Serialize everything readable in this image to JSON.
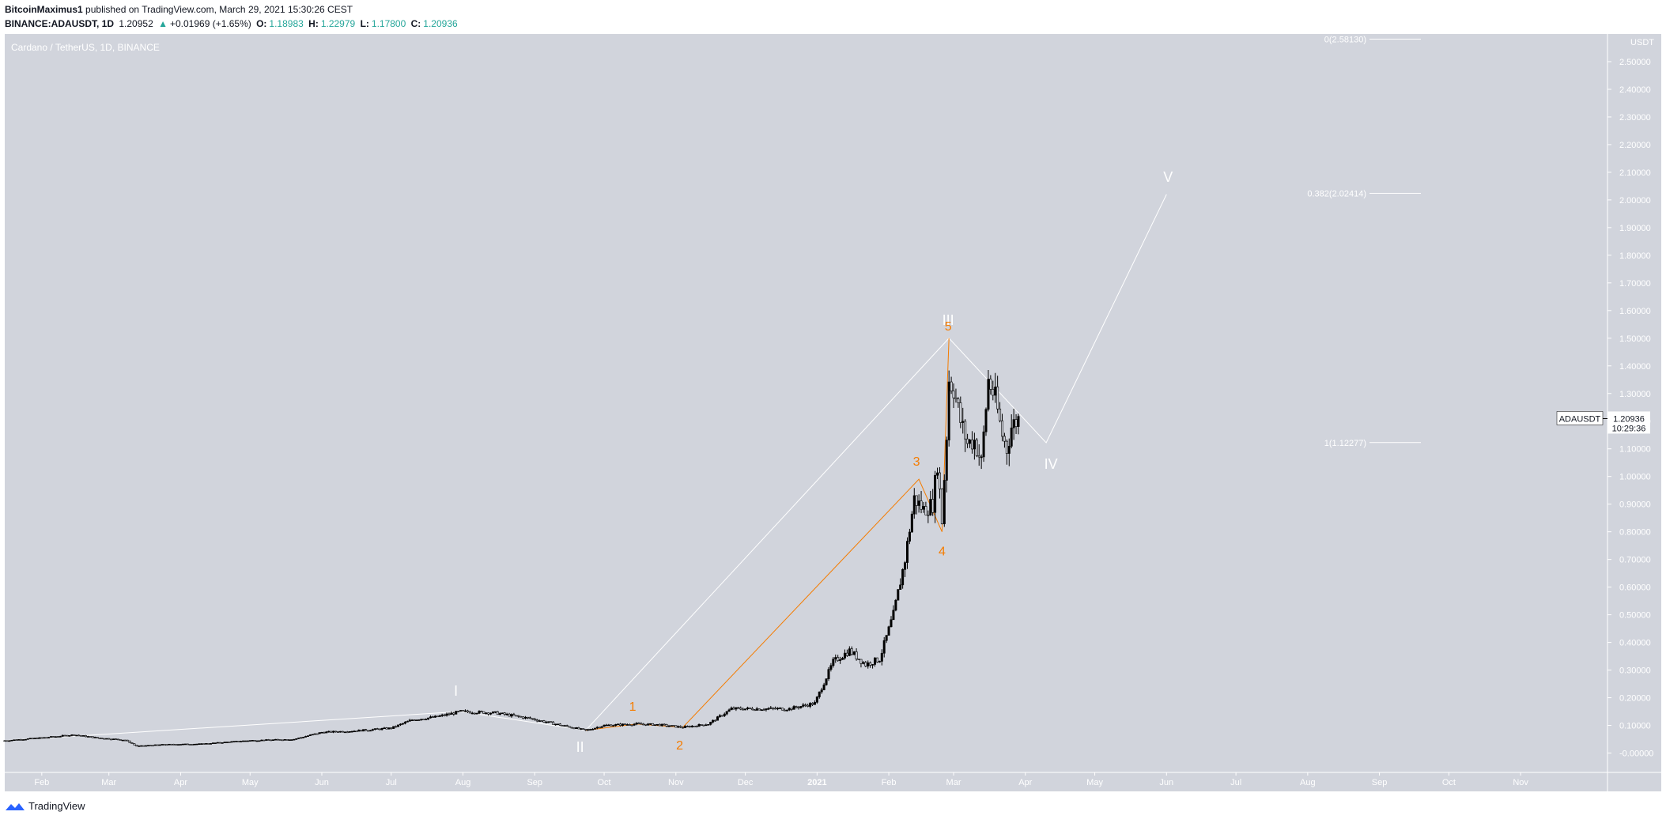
{
  "header": {
    "author": "BitcoinMaximus1",
    "published": "published on TradingView.com, March 29, 2021 15:30:26 CEST",
    "symbol": "BINANCE:ADAUSDT, 1D",
    "last": "1.20952",
    "change": "+0.01969 (+1.65%)",
    "o_label": "O:",
    "o_value": "1.18983",
    "h_label": "H:",
    "h_value": "1.22979",
    "l_label": "L:",
    "l_value": "1.17800",
    "c_label": "C:",
    "c_value": "1.20936"
  },
  "footer": {
    "brand": "TradingView"
  },
  "colors": {
    "background": "#d1d4dc",
    "candle": "#000000",
    "wave_white": "#ffffff",
    "wave_orange": "#f57c00",
    "up": "#26a69a"
  },
  "chart_data": {
    "type": "candlestick",
    "title": "Cardano / TetherUS, 1D, BINANCE",
    "axis_unit": "USDT",
    "ylim": [
      -0.07,
      2.6
    ],
    "y_ticks": [
      "2.50000",
      "2.40000",
      "2.30000",
      "2.20000",
      "2.10000",
      "2.00000",
      "1.90000",
      "1.80000",
      "1.70000",
      "1.60000",
      "1.50000",
      "1.40000",
      "1.30000",
      "1.20000",
      "1.10000",
      "1.00000",
      "0.90000",
      "0.80000",
      "0.70000",
      "0.60000",
      "0.50000",
      "0.40000",
      "0.30000",
      "0.20000",
      "0.10000",
      "-0.00000"
    ],
    "y_tick_values": [
      2.5,
      2.4,
      2.3,
      2.2,
      2.1,
      2.0,
      1.9,
      1.8,
      1.7,
      1.6,
      1.5,
      1.4,
      1.3,
      1.2,
      1.1,
      1.0,
      0.9,
      0.8,
      0.7,
      0.6,
      0.5,
      0.4,
      0.3,
      0.2,
      0.1,
      0.0
    ],
    "x_ticks": [
      "Feb",
      "Mar",
      "Apr",
      "May",
      "Jun",
      "Jul",
      "Aug",
      "Sep",
      "Oct",
      "Nov",
      "Dec",
      "2021",
      "Feb",
      "Mar",
      "Apr",
      "May",
      "Jun",
      "Jul",
      "Aug",
      "Sep",
      "Oct",
      "Nov"
    ],
    "x_tick_dates": [
      "2020-02-01",
      "2020-03-01",
      "2020-04-01",
      "2020-05-01",
      "2020-06-01",
      "2020-07-01",
      "2020-08-01",
      "2020-09-01",
      "2020-10-01",
      "2020-11-01",
      "2020-12-01",
      "2021-01-01",
      "2021-02-01",
      "2021-03-01",
      "2021-04-01",
      "2021-05-01",
      "2021-06-01",
      "2021-07-01",
      "2021-08-01",
      "2021-09-01",
      "2021-10-01",
      "2021-11-01"
    ],
    "price_series": [
      [
        "2020-01-16",
        0.045
      ],
      [
        "2020-02-01",
        0.055
      ],
      [
        "2020-02-15",
        0.066
      ],
      [
        "2020-02-25",
        0.055
      ],
      [
        "2020-03-08",
        0.047
      ],
      [
        "2020-03-13",
        0.025
      ],
      [
        "2020-03-25",
        0.031
      ],
      [
        "2020-04-10",
        0.033
      ],
      [
        "2020-04-30",
        0.045
      ],
      [
        "2020-05-20",
        0.05
      ],
      [
        "2020-06-01",
        0.075
      ],
      [
        "2020-06-15",
        0.08
      ],
      [
        "2020-07-01",
        0.09
      ],
      [
        "2020-07-10",
        0.12
      ],
      [
        "2020-07-20",
        0.13
      ],
      [
        "2020-07-31",
        0.15
      ],
      [
        "2020-08-15",
        0.145
      ],
      [
        "2020-08-30",
        0.125
      ],
      [
        "2020-09-10",
        0.105
      ],
      [
        "2020-09-23",
        0.082
      ],
      [
        "2020-10-01",
        0.1
      ],
      [
        "2020-10-15",
        0.105
      ],
      [
        "2020-10-25",
        0.102
      ],
      [
        "2020-11-04",
        0.093
      ],
      [
        "2020-11-15",
        0.105
      ],
      [
        "2020-11-25",
        0.16
      ],
      [
        "2020-12-05",
        0.16
      ],
      [
        "2020-12-20",
        0.16
      ],
      [
        "2020-12-31",
        0.18
      ],
      [
        "2021-01-08",
        0.33
      ],
      [
        "2021-01-15",
        0.37
      ],
      [
        "2021-01-22",
        0.32
      ],
      [
        "2021-01-28",
        0.34
      ],
      [
        "2021-02-03",
        0.5
      ],
      [
        "2021-02-08",
        0.7
      ],
      [
        "2021-02-12",
        0.92
      ],
      [
        "2021-02-16",
        0.88
      ],
      [
        "2021-02-20",
        0.9
      ],
      [
        "2021-02-22",
        1.05
      ],
      [
        "2021-02-24",
        0.84
      ],
      [
        "2021-02-26",
        1.15
      ],
      [
        "2021-02-27",
        1.35
      ],
      [
        "2021-03-01",
        1.32
      ],
      [
        "2021-03-04",
        1.2
      ],
      [
        "2021-03-07",
        1.12
      ],
      [
        "2021-03-10",
        1.13
      ],
      [
        "2021-03-13",
        1.05
      ],
      [
        "2021-03-16",
        1.35
      ],
      [
        "2021-03-19",
        1.28
      ],
      [
        "2021-03-22",
        1.15
      ],
      [
        "2021-03-24",
        1.1
      ],
      [
        "2021-03-26",
        1.18
      ],
      [
        "2021-03-29",
        1.209
      ]
    ],
    "white_wave": {
      "points": [
        [
          "2020-01-16",
          0.045
        ],
        [
          "2020-07-31",
          0.15
        ],
        [
          "2020-09-23",
          0.082
        ],
        [
          "2021-02-27",
          1.5
        ],
        [
          "2021-04-10",
          1.122
        ],
        [
          "2021-06-01",
          2.02
        ]
      ],
      "labels": [
        "I",
        "II",
        "III",
        "IV",
        "V"
      ]
    },
    "orange_wave": {
      "points": [
        [
          "2020-09-23",
          0.082
        ],
        [
          "2020-10-15",
          0.105
        ],
        [
          "2020-11-04",
          0.093
        ],
        [
          "2021-02-14",
          0.99
        ],
        [
          "2021-02-24",
          0.8
        ],
        [
          "2021-02-27",
          1.5
        ]
      ],
      "labels": [
        "1",
        "2",
        "3",
        "4",
        "5"
      ]
    },
    "fib_levels": [
      {
        "label": "0(2.58130)",
        "value": 2.5813
      },
      {
        "label": "0.382(2.02414)",
        "value": 2.02414
      },
      {
        "label": "1(1.12277)",
        "value": 1.12277
      }
    ],
    "price_tag": {
      "symbol": "ADAUSDT",
      "value": "1.20936",
      "countdown": "10:29:36"
    }
  }
}
